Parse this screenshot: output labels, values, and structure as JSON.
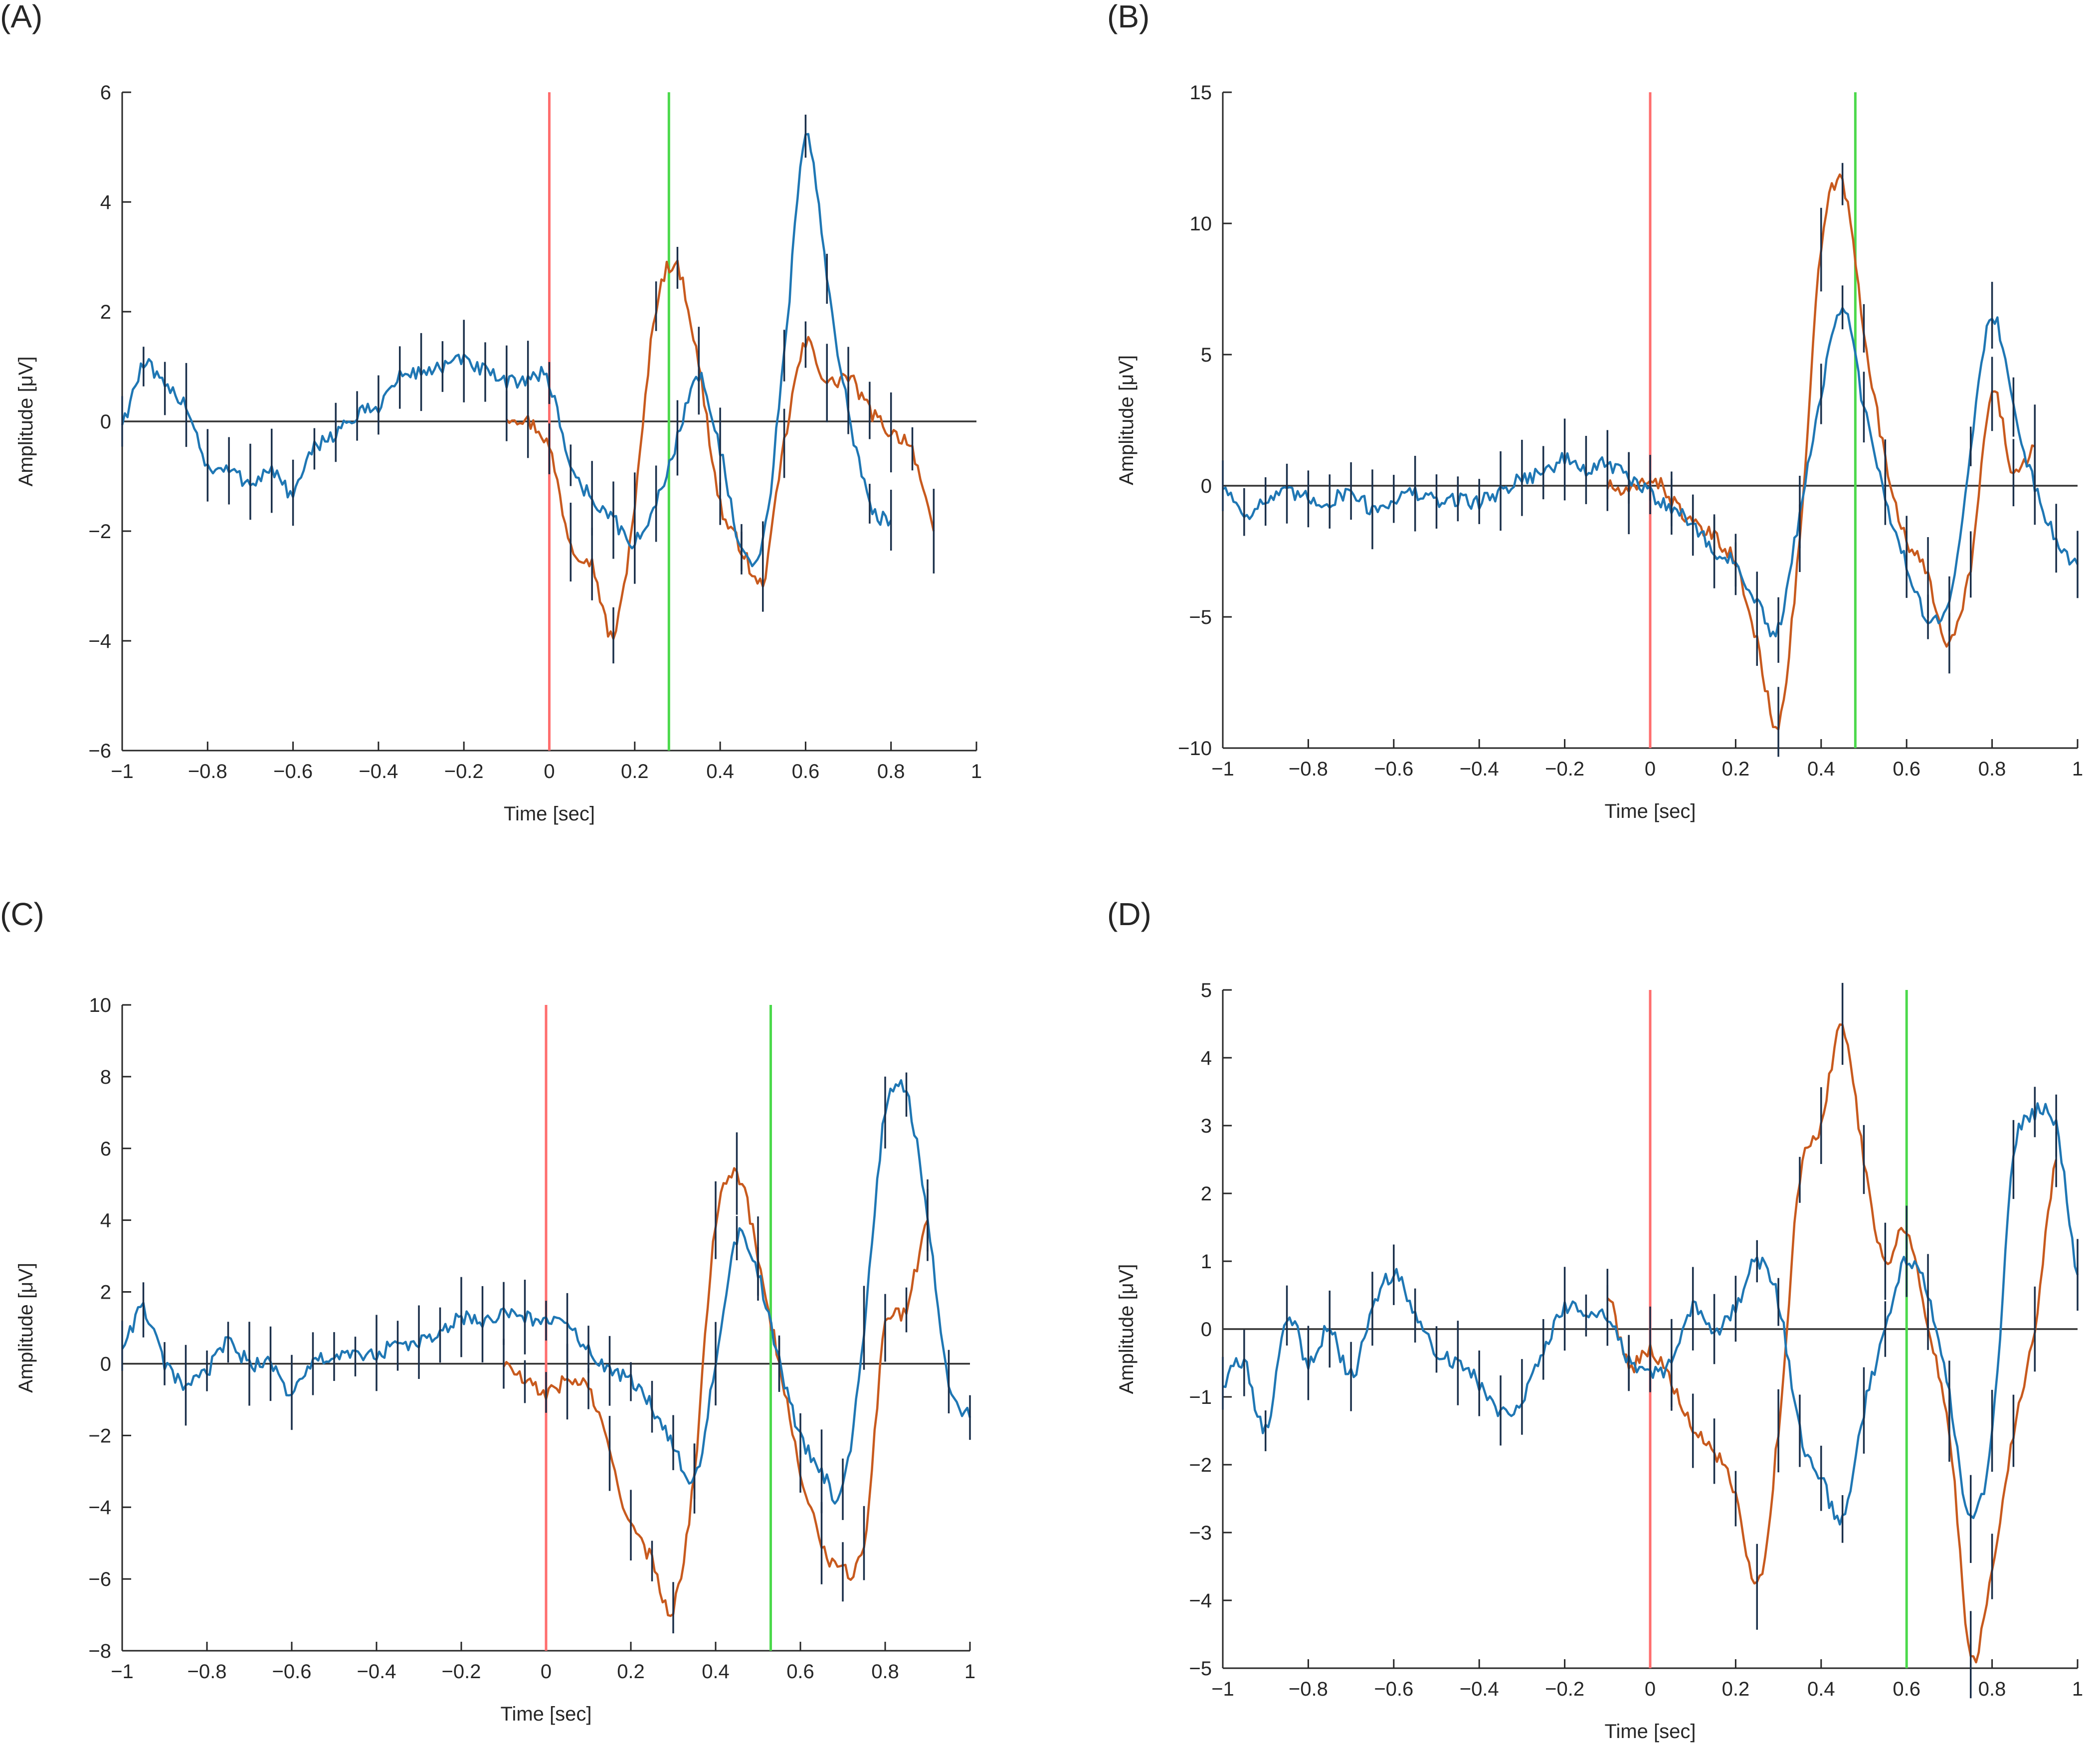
{
  "figure": {
    "background": "#ffffff"
  },
  "colors": {
    "series_blue": "#1f77b4",
    "series_orange": "#c85a1e",
    "errorbar": "#1a2f4a",
    "stimulus_line": "#ff6e6e",
    "response_line": "#4cd94c",
    "zero_line": "#333333"
  },
  "chart_data": [
    {
      "panel": "(A)",
      "type": "line",
      "xlabel": "Time [sec]",
      "ylabel": "Amplitude [μV]",
      "xlim": [
        -1,
        1
      ],
      "ylim": [
        -6,
        6
      ],
      "xticks": [
        -1,
        -0.8,
        -0.6,
        -0.4,
        -0.2,
        0,
        0.2,
        0.4,
        0.6,
        0.8,
        1
      ],
      "xtick_labels": [
        "−1",
        "−0.8",
        "−0.6",
        "−0.4",
        "−0.2",
        "0",
        "0.2",
        "0.4",
        "0.6",
        "0.8",
        "1"
      ],
      "yticks": [
        -6,
        -4,
        -2,
        0,
        2,
        4,
        6
      ],
      "ytick_labels": [
        "−6",
        "−4",
        "−2",
        "0",
        "2",
        "4",
        "6"
      ],
      "vlines": [
        {
          "x": 0,
          "color": "#ff6e6e"
        },
        {
          "x": 0.28,
          "color": "#4cd94c"
        }
      ],
      "series": [
        {
          "name": "blue",
          "color": "#1f77b4",
          "x": [
            -1,
            -0.95,
            -0.9,
            -0.85,
            -0.8,
            -0.75,
            -0.7,
            -0.65,
            -0.6,
            -0.55,
            -0.5,
            -0.45,
            -0.4,
            -0.35,
            -0.3,
            -0.25,
            -0.2,
            -0.15,
            -0.1,
            -0.05,
            0,
            0.05,
            0.1,
            0.15,
            0.2,
            0.25,
            0.3,
            0.35,
            0.4,
            0.45,
            0.5,
            0.55,
            0.6,
            0.65,
            0.7,
            0.75,
            0.8
          ],
          "values": [
            0.0,
            1.0,
            0.6,
            0.3,
            -0.8,
            -0.9,
            -1.1,
            -0.9,
            -1.3,
            -0.5,
            -0.2,
            0.1,
            0.3,
            0.8,
            0.9,
            1.0,
            1.1,
            0.9,
            0.7,
            0.8,
            0.7,
            -0.8,
            -1.4,
            -1.8,
            -2.2,
            -1.5,
            -0.3,
            0.8,
            -0.5,
            -2.4,
            -2.2,
            1.2,
            5.2,
            2.6,
            0.2,
            -1.5,
            -1.8
          ]
        },
        {
          "name": "orange",
          "color": "#c85a1e",
          "x": [
            -0.1,
            -0.05,
            0,
            0.05,
            0.1,
            0.15,
            0.2,
            0.25,
            0.3,
            0.35,
            0.4,
            0.45,
            0.5,
            0.55,
            0.6,
            0.65,
            0.7,
            0.75,
            0.8,
            0.85,
            0.9
          ],
          "values": [
            0.1,
            0.0,
            -0.5,
            -2.2,
            -2.6,
            -3.9,
            -1.5,
            2.1,
            2.8,
            1.0,
            -1.5,
            -2.3,
            -2.9,
            -0.4,
            1.4,
            0.7,
            0.8,
            0.2,
            -0.2,
            -0.5,
            -2.0
          ]
        }
      ]
    },
    {
      "panel": "(B)",
      "type": "line",
      "xlabel": "Time [sec]",
      "ylabel": "Amplitude [μV]",
      "xlim": [
        -1,
        1
      ],
      "ylim": [
        -10,
        15
      ],
      "xticks": [
        -1,
        -0.8,
        -0.6,
        -0.4,
        -0.2,
        0,
        0.2,
        0.4,
        0.6,
        0.8,
        1
      ],
      "xtick_labels": [
        "−1",
        "−0.8",
        "−0.6",
        "−0.4",
        "−0.2",
        "0",
        "0.2",
        "0.4",
        "0.6",
        "0.8",
        "1"
      ],
      "yticks": [
        -10,
        -5,
        0,
        5,
        10,
        15
      ],
      "ytick_labels": [
        "−10",
        "−5",
        "0",
        "5",
        "10",
        "15"
      ],
      "vlines": [
        {
          "x": 0,
          "color": "#ff6e6e"
        },
        {
          "x": 0.48,
          "color": "#4cd94c"
        }
      ],
      "series": [
        {
          "name": "blue",
          "color": "#1f77b4",
          "x": [
            -1,
            -0.95,
            -0.9,
            -0.85,
            -0.8,
            -0.75,
            -0.7,
            -0.65,
            -0.6,
            -0.55,
            -0.5,
            -0.45,
            -0.4,
            -0.35,
            -0.3,
            -0.25,
            -0.2,
            -0.15,
            -0.1,
            -0.05,
            0,
            0.05,
            0.1,
            0.15,
            0.2,
            0.25,
            0.3,
            0.35,
            0.4,
            0.45,
            0.5,
            0.55,
            0.6,
            0.65,
            0.7,
            0.75,
            0.8,
            0.85,
            0.9,
            0.95,
            1
          ],
          "values": [
            0.0,
            -1.0,
            -0.6,
            -0.3,
            -0.5,
            -0.6,
            -0.2,
            -0.9,
            -0.5,
            -0.3,
            -0.6,
            -0.5,
            -0.6,
            -0.2,
            0.3,
            0.5,
            1.0,
            0.6,
            0.8,
            0.3,
            -0.3,
            -0.8,
            -1.5,
            -2.5,
            -3.0,
            -4.5,
            -5.5,
            -1.0,
            3.5,
            6.8,
            3.0,
            -0.5,
            -3.0,
            -5.0,
            -4.5,
            1.5,
            6.5,
            3.0,
            0.0,
            -2.0,
            -3.0
          ]
        },
        {
          "name": "orange",
          "color": "#c85a1e",
          "x": [
            -0.1,
            -0.05,
            0,
            0.05,
            0.1,
            0.15,
            0.2,
            0.25,
            0.3,
            0.35,
            0.4,
            0.45,
            0.5,
            0.55,
            0.6,
            0.65,
            0.7,
            0.75,
            0.8,
            0.85,
            0.9
          ],
          "values": [
            0.0,
            -0.3,
            0.3,
            -0.5,
            -1.5,
            -2.0,
            -3.0,
            -6.0,
            -9.0,
            -2.0,
            9.0,
            11.5,
            6.0,
            1.0,
            -2.0,
            -3.5,
            -6.0,
            -3.0,
            3.5,
            0.5,
            1.5
          ]
        }
      ]
    },
    {
      "panel": "(C)",
      "type": "line",
      "xlabel": "Time [sec]",
      "ylabel": "Amplitude [μV]",
      "xlim": [
        -1,
        1
      ],
      "ylim": [
        -8,
        10
      ],
      "xticks": [
        -1,
        -0.8,
        -0.6,
        -0.4,
        -0.2,
        0,
        0.2,
        0.4,
        0.6,
        0.8,
        1
      ],
      "xtick_labels": [
        "−1",
        "−0.8",
        "−0.6",
        "−0.4",
        "−0.2",
        "0",
        "0.2",
        "0.4",
        "0.6",
        "0.8",
        "1"
      ],
      "yticks": [
        -8,
        -6,
        -4,
        -2,
        0,
        2,
        4,
        6,
        8,
        10
      ],
      "ytick_labels": [
        "−8",
        "−6",
        "−4",
        "−2",
        "0",
        "2",
        "4",
        "6",
        "8",
        "10"
      ],
      "vlines": [
        {
          "x": 0,
          "color": "#ff6e6e"
        },
        {
          "x": 0.53,
          "color": "#4cd94c"
        }
      ],
      "series": [
        {
          "name": "blue",
          "color": "#1f77b4",
          "x": [
            -1,
            -0.95,
            -0.9,
            -0.85,
            -0.8,
            -0.75,
            -0.7,
            -0.65,
            -0.6,
            -0.55,
            -0.5,
            -0.45,
            -0.4,
            -0.35,
            -0.3,
            -0.25,
            -0.2,
            -0.15,
            -0.1,
            -0.05,
            0,
            0.05,
            0.1,
            0.15,
            0.2,
            0.25,
            0.3,
            0.35,
            0.4,
            0.45,
            0.5,
            0.55,
            0.6,
            0.65,
            0.7,
            0.75,
            0.8,
            0.85,
            0.9,
            0.95,
            1
          ],
          "values": [
            0.5,
            1.5,
            0.0,
            -0.6,
            -0.2,
            0.6,
            0.0,
            0.0,
            -0.8,
            0.0,
            0.2,
            0.2,
            0.3,
            0.5,
            0.6,
            0.8,
            1.3,
            1.1,
            1.4,
            1.3,
            1.2,
            1.0,
            0.4,
            -0.2,
            -0.5,
            -1.2,
            -2.2,
            -3.2,
            0.0,
            3.5,
            2.5,
            0.0,
            -2.0,
            -3.0,
            -3.5,
            1.0,
            7.0,
            7.5,
            4.0,
            -0.5,
            -1.5
          ]
        },
        {
          "name": "orange",
          "color": "#c85a1e",
          "x": [
            -0.1,
            -0.05,
            0,
            0.05,
            0.1,
            0.15,
            0.2,
            0.25,
            0.3,
            0.35,
            0.4,
            0.45,
            0.5,
            0.55,
            0.6,
            0.65,
            0.7,
            0.75,
            0.8,
            0.85,
            0.9
          ],
          "values": [
            0.0,
            -0.5,
            -0.8,
            -0.5,
            -0.7,
            -2.5,
            -4.5,
            -5.5,
            -6.8,
            -3.0,
            4.0,
            5.3,
            3.0,
            0.0,
            -3.0,
            -5.0,
            -5.8,
            -5.0,
            1.0,
            1.5,
            4.0
          ]
        }
      ]
    },
    {
      "panel": "(D)",
      "type": "line",
      "xlabel": "Time [sec]",
      "ylabel": "Amplitude [μV]",
      "xlim": [
        -1,
        1
      ],
      "ylim": [
        -5,
        5
      ],
      "xticks": [
        -1,
        -0.8,
        -0.6,
        -0.4,
        -0.2,
        0,
        0.2,
        0.4,
        0.6,
        0.8,
        1
      ],
      "xtick_labels": [
        "−1",
        "−0.8",
        "−0.6",
        "−0.4",
        "−0.2",
        "0",
        "0.2",
        "0.4",
        "0.6",
        "0.8",
        "1"
      ],
      "yticks": [
        -5,
        -4,
        -3,
        -2,
        -1,
        0,
        1,
        2,
        3,
        4,
        5
      ],
      "ytick_labels": [
        "−5",
        "−4",
        "−3",
        "−2",
        "−1",
        "0",
        "1",
        "2",
        "3",
        "4",
        "5"
      ],
      "vlines": [
        {
          "x": 0,
          "color": "#ff6e6e"
        },
        {
          "x": 0.6,
          "color": "#4cd94c"
        }
      ],
      "series": [
        {
          "name": "blue",
          "color": "#1f77b4",
          "x": [
            -1,
            -0.95,
            -0.9,
            -0.85,
            -0.8,
            -0.75,
            -0.7,
            -0.65,
            -0.6,
            -0.55,
            -0.5,
            -0.45,
            -0.4,
            -0.35,
            -0.3,
            -0.25,
            -0.2,
            -0.15,
            -0.1,
            -0.05,
            0,
            0.05,
            0.1,
            0.15,
            0.2,
            0.25,
            0.3,
            0.35,
            0.4,
            0.45,
            0.5,
            0.55,
            0.6,
            0.65,
            0.7,
            0.75,
            0.8,
            0.85,
            0.9,
            0.95,
            1
          ],
          "values": [
            -0.8,
            -0.5,
            -1.5,
            0.2,
            -0.5,
            0.0,
            -0.7,
            0.3,
            0.8,
            0.2,
            -0.3,
            -0.5,
            -0.8,
            -1.2,
            -1.0,
            -0.3,
            0.3,
            0.2,
            0.2,
            -0.5,
            -0.6,
            -0.5,
            0.3,
            0.0,
            0.3,
            1.0,
            0.4,
            -1.5,
            -2.2,
            -2.8,
            -1.2,
            0.0,
            1.0,
            0.5,
            -1.0,
            -2.8,
            -1.5,
            2.5,
            3.2,
            3.0,
            0.8
          ]
        },
        {
          "name": "orange",
          "color": "#c85a1e",
          "x": [
            -0.1,
            -0.05,
            0,
            0.05,
            0.1,
            0.15,
            0.2,
            0.25,
            0.3,
            0.35,
            0.4,
            0.45,
            0.5,
            0.55,
            0.6,
            0.65,
            0.7,
            0.75,
            0.8,
            0.85,
            0.9,
            0.95
          ],
          "values": [
            0.5,
            -0.5,
            -0.3,
            -0.8,
            -1.5,
            -1.8,
            -2.5,
            -3.8,
            -1.5,
            2.2,
            3.0,
            4.5,
            2.5,
            1.0,
            1.5,
            0.0,
            -1.5,
            -4.8,
            -3.5,
            -1.5,
            0.0,
            2.5
          ]
        }
      ]
    }
  ]
}
